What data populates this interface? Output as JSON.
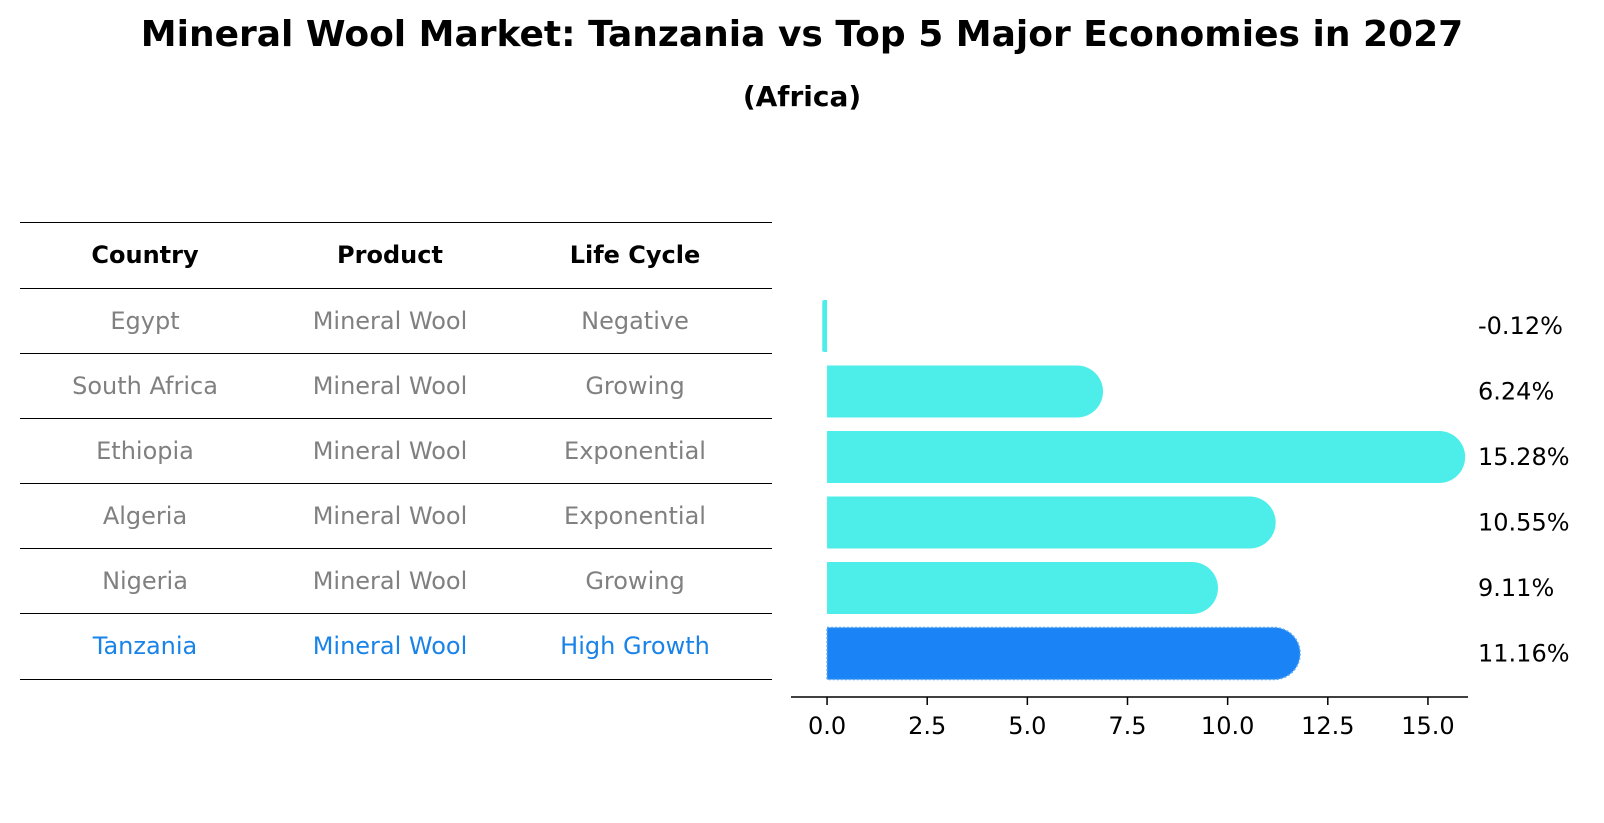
{
  "title": "Mineral Wool Market: Tanzania vs Top 5 Major Economies in 2027",
  "subtitle": "(Africa)",
  "table": {
    "headers": [
      "Country",
      "Product",
      "Life Cycle"
    ],
    "rows": [
      {
        "country": "Egypt",
        "product": "Mineral Wool",
        "life_cycle": "Negative",
        "highlight": false
      },
      {
        "country": "South Africa",
        "product": "Mineral Wool",
        "life_cycle": "Growing",
        "highlight": false
      },
      {
        "country": "Ethiopia",
        "product": "Mineral Wool",
        "life_cycle": "Exponential",
        "highlight": false
      },
      {
        "country": "Algeria",
        "product": "Mineral Wool",
        "life_cycle": "Exponential",
        "highlight": false
      },
      {
        "country": "Nigeria",
        "product": "Mineral Wool",
        "life_cycle": "Growing",
        "highlight": false
      },
      {
        "country": "Tanzania",
        "product": "Mineral Wool",
        "life_cycle": "High Growth",
        "highlight": true
      }
    ]
  },
  "chart_data": {
    "type": "bar",
    "orientation": "horizontal",
    "categories": [
      "Egypt",
      "South Africa",
      "Ethiopia",
      "Algeria",
      "Nigeria",
      "Tanzania"
    ],
    "values": [
      -0.12,
      6.24,
      15.28,
      10.55,
      9.11,
      11.16
    ],
    "labels": [
      "-0.12%",
      "6.24%",
      "15.28%",
      "10.55%",
      "9.11%",
      "11.16%"
    ],
    "xlim": [
      -0.9,
      16.0
    ],
    "xticks": [
      0.0,
      2.5,
      5.0,
      7.5,
      10.0,
      12.5,
      15.0
    ],
    "xtick_labels": [
      "0.0",
      "2.5",
      "5.0",
      "7.5",
      "10.0",
      "12.5",
      "15.0"
    ],
    "highlight": "Tanzania",
    "colors": {
      "bar": "#4deeea",
      "highlight": "#1a83f5"
    }
  }
}
